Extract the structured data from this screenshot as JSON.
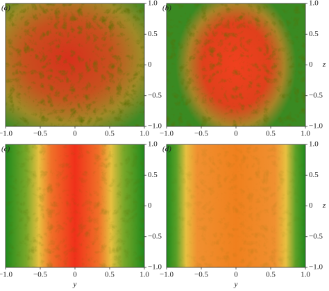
{
  "panels": [
    {
      "label": "(a)"
    },
    {
      "label": "(b)"
    },
    {
      "label": "(c)"
    },
    {
      "label": "(d)"
    }
  ],
  "x_axis": {
    "label": "y",
    "ticks": [
      "−1.0",
      "−0.5",
      "0",
      "0.5",
      "1.0"
    ]
  },
  "z_axis": {
    "label": "z",
    "ticks": [
      "1.0",
      "0.5",
      "0",
      "−0.5",
      "−1.0"
    ]
  }
}
